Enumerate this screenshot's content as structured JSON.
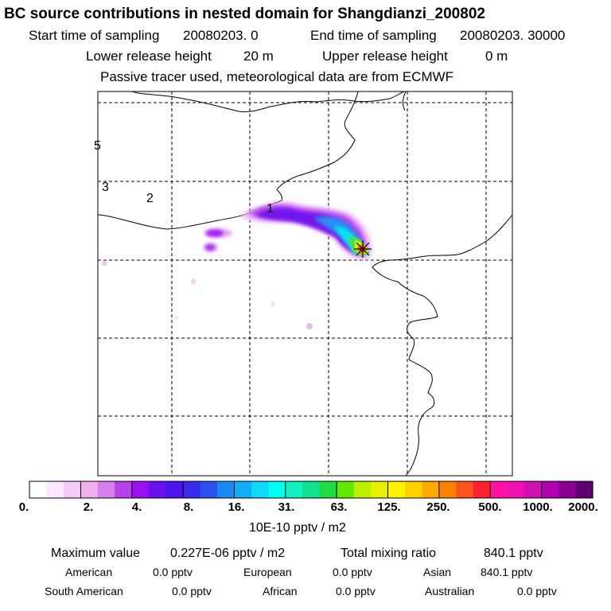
{
  "header": {
    "title": "BC  source contributions in nested domain for Shangdianzi_200802",
    "start_label": "Start time of sampling",
    "start_value": "20080203.     0",
    "end_label": "End time of sampling",
    "end_value": "20080203. 30000",
    "lower_label": "Lower release height",
    "lower_value": "20 m",
    "upper_label": "Upper release height",
    "upper_value": "0 m",
    "tracer_note": "Passive tracer used, meteorological data are from ECMWF"
  },
  "map": {
    "contour_labels": [
      "5",
      "3",
      "2",
      "1"
    ],
    "receptor_marker": "receptor-star"
  },
  "legend": {
    "colors": [
      "#ffffff",
      "#fde8fd",
      "#f6ccf6",
      "#f0b0f0",
      "#d880f0",
      "#b540ee",
      "#9a10f2",
      "#6a10ee",
      "#4a14ee",
      "#3a2af0",
      "#2a50f0",
      "#1a8af2",
      "#10b0f6",
      "#10d8fa",
      "#00ffee",
      "#10f0c0",
      "#10e090",
      "#20dc40",
      "#60e800",
      "#b8f000",
      "#e8f000",
      "#fff000",
      "#ffd000",
      "#ffa800",
      "#ff8000",
      "#ff5020",
      "#ff2030",
      "#ff10a0",
      "#f010b0",
      "#d010b0",
      "#b000b0",
      "#8a0090",
      "#600070"
    ],
    "ticks": [
      "0.",
      "2.",
      "4.",
      "8.",
      "16.",
      "31.",
      "63.",
      "125.",
      "250.",
      "500.",
      "1000.",
      "2000."
    ],
    "unit": "10E-10 pptv / m2"
  },
  "stats": {
    "max_label": "Maximum value",
    "max_value": "0.227E-06 pptv / m2",
    "total_label": "Total mixing ratio",
    "total_value": "840.1 pptv",
    "american_label": "American",
    "american_value": "0.0 pptv",
    "european_label": "European",
    "european_value": "0.0 pptv",
    "asian_label": "Asian",
    "asian_value": "840.1 pptv",
    "south_american_label": "South American",
    "south_american_value": "0.0 pptv",
    "african_label": "African",
    "african_value": "0.0 pptv",
    "australian_label": "Australian",
    "australian_value": "0.0 pptv"
  }
}
